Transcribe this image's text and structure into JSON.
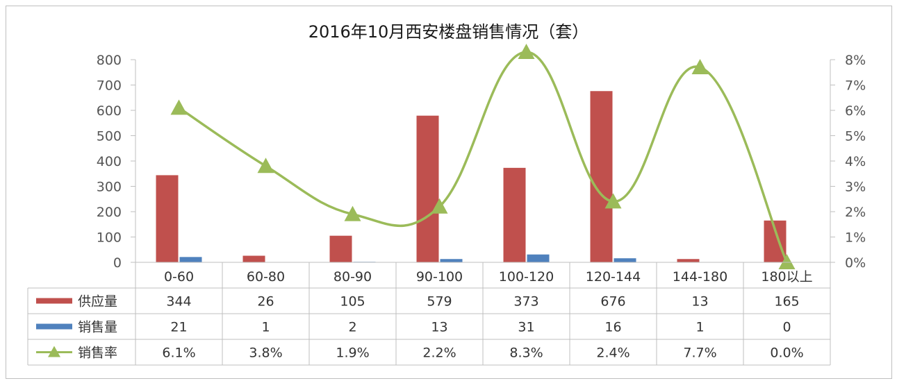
{
  "chart_data": {
    "type": "bar",
    "title": "2016年10月西安楼盘销售情况（套）",
    "categories": [
      "0-60",
      "60-80",
      "80-90",
      "90-100",
      "100-120",
      "120-144",
      "144-180",
      "180以上"
    ],
    "ylim": [
      0,
      800
    ],
    "y_ticks": [
      "0",
      "100",
      "200",
      "300",
      "400",
      "500",
      "600",
      "700",
      "800"
    ],
    "y2lim": [
      0,
      0.08
    ],
    "y2_ticks": [
      "0%",
      "1%",
      "2%",
      "3%",
      "4%",
      "5%",
      "6%",
      "7%",
      "8%"
    ],
    "grid": false,
    "legend": "table-below",
    "series": [
      {
        "name": "供应量",
        "type": "bar",
        "axis": "left",
        "color": "#c0504d",
        "values": [
          344,
          26,
          105,
          579,
          373,
          676,
          13,
          165
        ],
        "labels": [
          "344",
          "26",
          "105",
          "579",
          "373",
          "676",
          "13",
          "165"
        ]
      },
      {
        "name": "销售量",
        "type": "bar",
        "axis": "left",
        "color": "#4f81bd",
        "values": [
          21,
          1,
          2,
          13,
          31,
          16,
          1,
          0
        ],
        "labels": [
          "21",
          "1",
          "2",
          "13",
          "31",
          "16",
          "1",
          "0"
        ]
      },
      {
        "name": "销售率",
        "type": "line",
        "axis": "right",
        "color": "#9bbb59",
        "values": [
          0.061,
          0.038,
          0.019,
          0.022,
          0.083,
          0.024,
          0.077,
          0.0
        ],
        "labels": [
          "6.1%",
          "3.8%",
          "1.9%",
          "2.2%",
          "8.3%",
          "2.4%",
          "7.7%",
          "0.0%"
        ]
      }
    ]
  }
}
